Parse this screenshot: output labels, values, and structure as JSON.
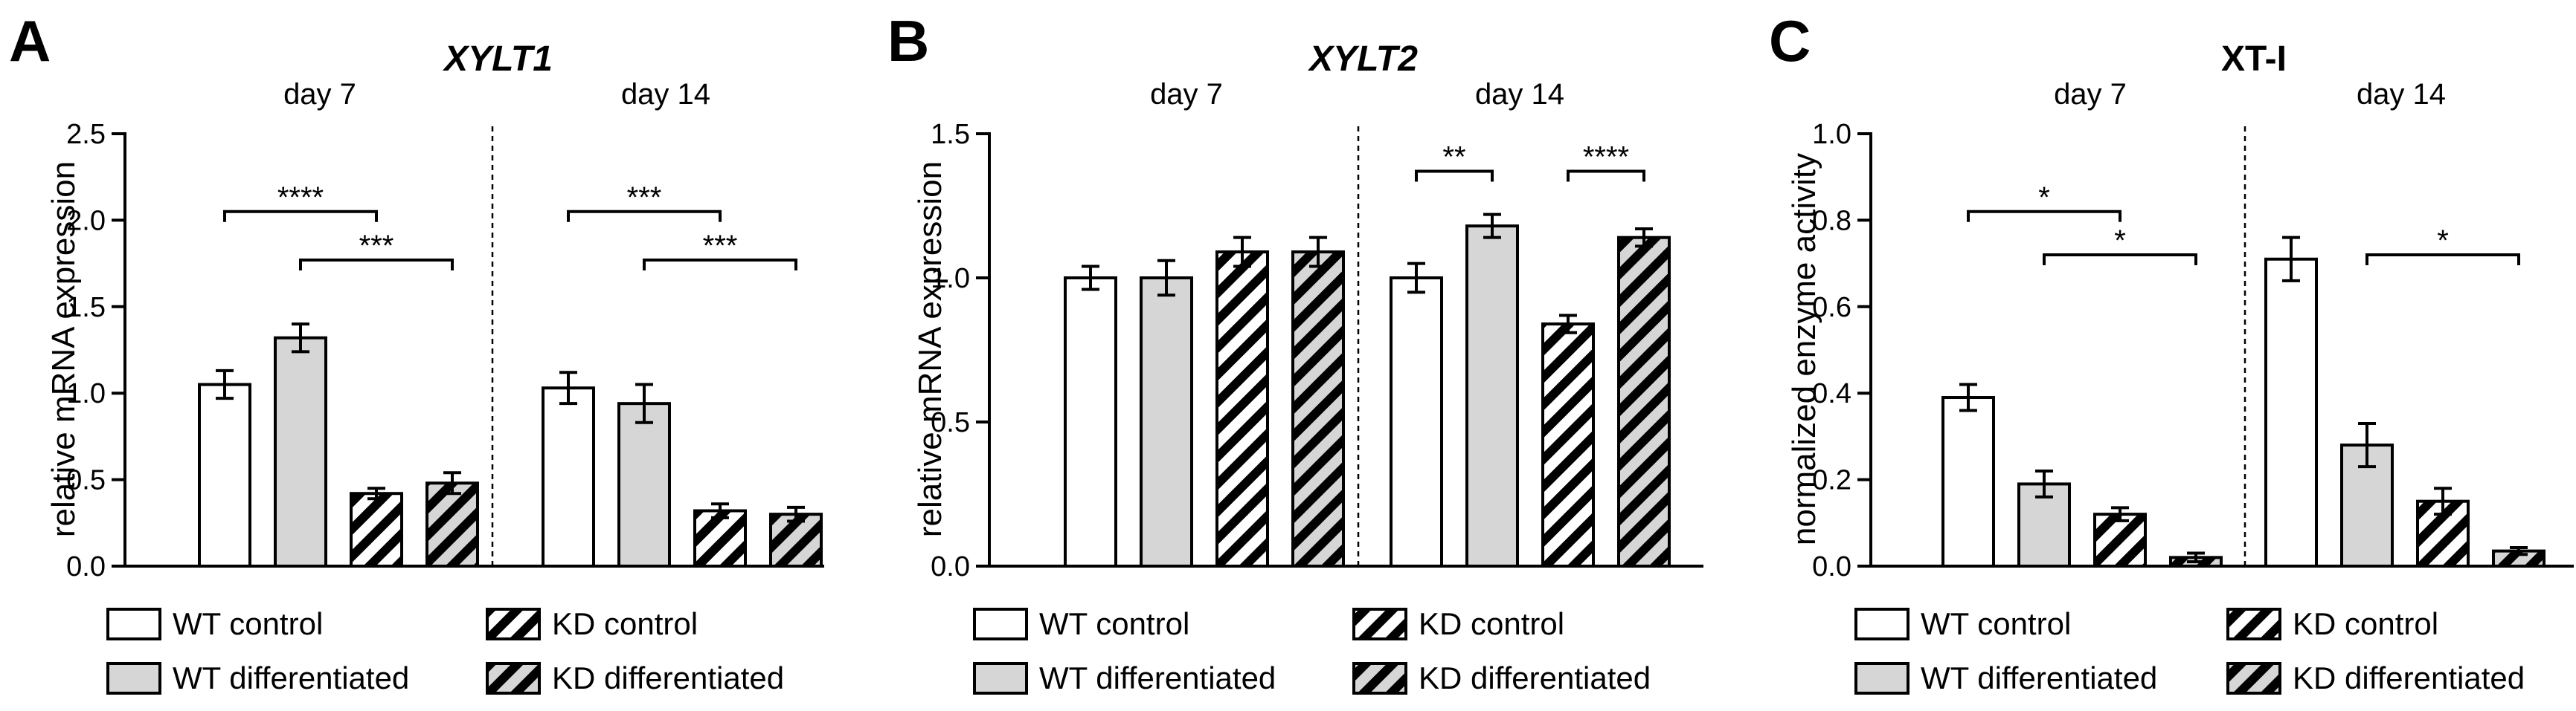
{
  "colors": {
    "wt_control": "#ffffff",
    "wt_diff": "#d6d6d6",
    "kd_control": "#ffffff",
    "kd_diff": "#d6d6d6",
    "stroke": "#000000"
  },
  "legend": [
    "WT control",
    "KD control",
    "WT differentiated",
    "KD differentiated"
  ],
  "chart_data": [
    {
      "type": "bar",
      "panel": "A",
      "title": "XYLT1",
      "title_italic": true,
      "ylabel": "relative mRNA expression",
      "ylim": [
        0,
        2.5
      ],
      "yticks": [
        "0.0",
        "0.5",
        "1.0",
        "1.5",
        "2.0",
        "2.5"
      ],
      "groups": [
        "day 7",
        "day 14"
      ],
      "series": [
        {
          "name": "WT control",
          "values": [
            1.05,
            1.03
          ],
          "errors": [
            0.08,
            0.09
          ]
        },
        {
          "name": "WT differentiated",
          "values": [
            1.32,
            0.94
          ],
          "errors": [
            0.08,
            0.11
          ]
        },
        {
          "name": "KD control",
          "values": [
            0.42,
            0.32
          ],
          "errors": [
            0.03,
            0.04
          ]
        },
        {
          "name": "KD differentiated",
          "values": [
            0.48,
            0.3
          ],
          "errors": [
            0.06,
            0.04
          ]
        }
      ],
      "significance": [
        {
          "group": 0,
          "from": 0,
          "to": 2,
          "y": 2.05,
          "label": "****"
        },
        {
          "group": 0,
          "from": 1,
          "to": 3,
          "y": 1.77,
          "label": "***"
        },
        {
          "group": 1,
          "from": 0,
          "to": 2,
          "y": 2.05,
          "label": "***"
        },
        {
          "group": 1,
          "from": 1,
          "to": 3,
          "y": 1.77,
          "label": "***"
        }
      ]
    },
    {
      "type": "bar",
      "panel": "B",
      "title": "XYLT2",
      "title_italic": true,
      "ylabel": "relative mRNA expression",
      "ylim": [
        0,
        1.5
      ],
      "yticks": [
        "0.0",
        "0.5",
        "1.0",
        "1.5"
      ],
      "groups": [
        "day 7",
        "day 14"
      ],
      "series": [
        {
          "name": "WT control",
          "values": [
            1.0,
            1.0
          ],
          "errors": [
            0.04,
            0.05
          ]
        },
        {
          "name": "WT differentiated",
          "values": [
            1.0,
            1.18
          ],
          "errors": [
            0.06,
            0.04
          ]
        },
        {
          "name": "KD control",
          "values": [
            1.09,
            0.84
          ],
          "errors": [
            0.05,
            0.03
          ]
        },
        {
          "name": "KD differentiated",
          "values": [
            1.09,
            1.14
          ],
          "errors": [
            0.05,
            0.03
          ]
        }
      ],
      "significance": [
        {
          "group": 1,
          "from": 0,
          "to": 1,
          "y": 1.37,
          "label": "**"
        },
        {
          "group": 1,
          "from": 2,
          "to": 3,
          "y": 1.37,
          "label": "****"
        }
      ]
    },
    {
      "type": "bar",
      "panel": "C",
      "title": "XT-I",
      "title_italic": false,
      "ylabel": "normalized enzyme activity",
      "ylim": [
        0,
        1.0
      ],
      "yticks": [
        "0.0",
        "0.2",
        "0.4",
        "0.6",
        "0.8",
        "1.0"
      ],
      "groups": [
        "day 7",
        "day 14"
      ],
      "series": [
        {
          "name": "WT control",
          "values": [
            0.39,
            0.71
          ],
          "errors": [
            0.03,
            0.05
          ]
        },
        {
          "name": "WT differentiated",
          "values": [
            0.19,
            0.28
          ],
          "errors": [
            0.03,
            0.05
          ]
        },
        {
          "name": "KD control",
          "values": [
            0.12,
            0.15
          ],
          "errors": [
            0.015,
            0.03
          ]
        },
        {
          "name": "KD differentiated",
          "values": [
            0.02,
            0.035
          ],
          "errors": [
            0.01,
            0.008
          ]
        }
      ],
      "significance": [
        {
          "group": 0,
          "from": 0,
          "to": 2,
          "y": 0.82,
          "label": "*"
        },
        {
          "group": 0,
          "from": 1,
          "to": 3,
          "y": 0.72,
          "label": "*"
        },
        {
          "group": 1,
          "from": 1,
          "to": 3,
          "y": 0.72,
          "label": "*"
        }
      ]
    }
  ]
}
